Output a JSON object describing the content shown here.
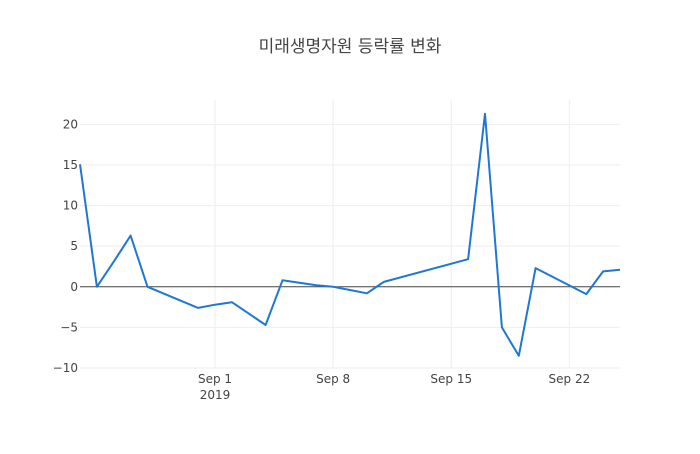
{
  "chart_data": {
    "type": "line",
    "title": "미래생명자원 등락률 변화",
    "xlabel": "",
    "ylabel": "",
    "x_axis_type": "date",
    "xlim": [
      "2019-08-24",
      "2019-09-25"
    ],
    "ylim": [
      -10,
      23
    ],
    "xticks": [
      {
        "date": "2019-09-01",
        "label": "Sep 1",
        "sublabel": "2019"
      },
      {
        "date": "2019-09-08",
        "label": "Sep 8",
        "sublabel": ""
      },
      {
        "date": "2019-09-15",
        "label": "Sep 15",
        "sublabel": ""
      },
      {
        "date": "2019-09-22",
        "label": "Sep 22",
        "sublabel": ""
      }
    ],
    "yticks": [
      {
        "value": -10,
        "label": "−10"
      },
      {
        "value": -5,
        "label": "−5"
      },
      {
        "value": 0,
        "label": "0"
      },
      {
        "value": 5,
        "label": "5"
      },
      {
        "value": 10,
        "label": "10"
      },
      {
        "value": 15,
        "label": "15"
      },
      {
        "value": 20,
        "label": "20"
      }
    ],
    "grid": true,
    "zero_line": true,
    "series": [
      {
        "name": "",
        "color": "#1f77d4",
        "x": [
          "2019-08-24",
          "2019-08-25",
          "2019-08-26",
          "2019-08-27",
          "2019-08-28",
          "2019-08-31",
          "2019-09-01",
          "2019-09-02",
          "2019-09-03",
          "2019-09-04",
          "2019-09-05",
          "2019-09-06",
          "2019-09-07",
          "2019-09-08",
          "2019-09-09",
          "2019-09-10",
          "2019-09-11",
          "2019-09-16",
          "2019-09-17",
          "2019-09-18",
          "2019-09-19",
          "2019-09-20",
          "2019-09-23",
          "2019-09-24",
          "2019-09-25"
        ],
        "y": [
          15.1,
          0.0,
          3.1,
          6.3,
          0.0,
          -2.6,
          -2.2,
          -1.9,
          -3.3,
          -4.7,
          0.8,
          0.5,
          0.2,
          0.0,
          -0.4,
          -0.8,
          0.6,
          3.4,
          21.3,
          -5.0,
          -8.5,
          2.3,
          -0.9,
          1.9,
          2.1
        ]
      }
    ]
  }
}
